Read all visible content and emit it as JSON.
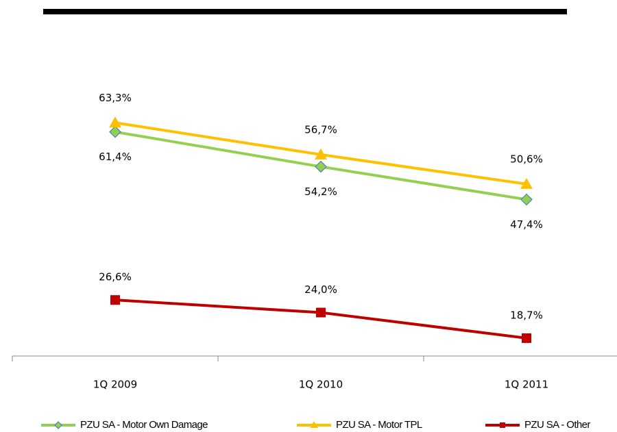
{
  "chart_data": {
    "type": "line",
    "categories": [
      "1Q 2009",
      "1Q 2010",
      "1Q 2011"
    ],
    "series": [
      {
        "name": "PZU SA - Motor Own Damage",
        "color": "#92d050",
        "marker": "diamond",
        "values": [
          61.4,
          54.2,
          47.4
        ],
        "value_labels": [
          "61,4%",
          "54,2%",
          "47,4%"
        ]
      },
      {
        "name": "PZU SA - Motor TPL",
        "color": "#ffc000",
        "marker": "triangle",
        "values": [
          63.3,
          56.7,
          50.6
        ],
        "value_labels": [
          "63,3%",
          "56,7%",
          "50,6%"
        ]
      },
      {
        "name": "PZU SA - Other",
        "color": "#c00000",
        "marker": "square",
        "values": [
          26.6,
          24.0,
          18.7
        ],
        "value_labels": [
          "26,6%",
          "24,0%",
          "18,7%"
        ]
      }
    ],
    "ylim": [
      15,
      70
    ],
    "legend": "bottom"
  }
}
